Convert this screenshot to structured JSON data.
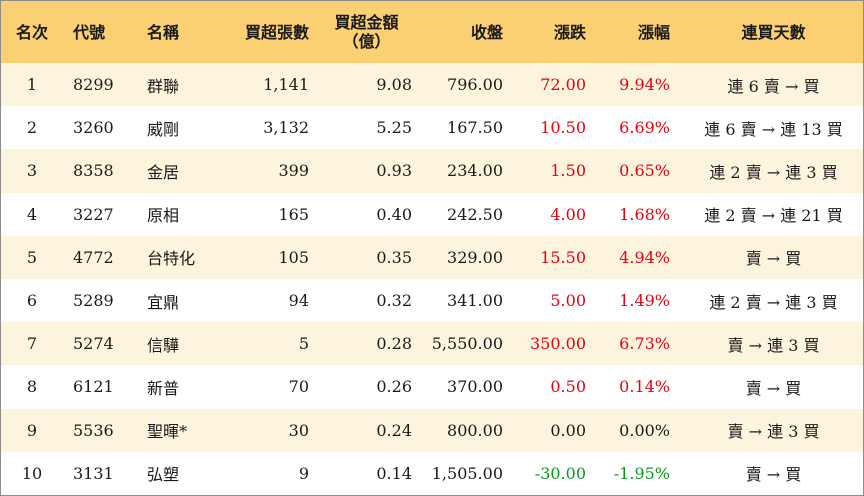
{
  "headers": {
    "rank": "名次",
    "code": "代號",
    "name": "名稱",
    "net_buy_lots": "買超張數",
    "net_buy_amount": "買超金額",
    "net_buy_amount_unit": "（億）",
    "close": "收盤",
    "change": "漲跌",
    "change_pct": "漲幅",
    "consecutive_days": "連買天數"
  },
  "rows": [
    {
      "rank": "1",
      "code": "8299",
      "name": "群聯",
      "lots": "1,141",
      "amount": "9.08",
      "close": "796.00",
      "change": "72.00",
      "pct": "9.94%",
      "days": "連 6 賣 → 買",
      "dir": "up"
    },
    {
      "rank": "2",
      "code": "3260",
      "name": "威剛",
      "lots": "3,132",
      "amount": "5.25",
      "close": "167.50",
      "change": "10.50",
      "pct": "6.69%",
      "days": "連 6 賣 → 連 13 買",
      "dir": "up"
    },
    {
      "rank": "3",
      "code": "8358",
      "name": "金居",
      "lots": "399",
      "amount": "0.93",
      "close": "234.00",
      "change": "1.50",
      "pct": "0.65%",
      "days": "連 2 賣 → 連 3 買",
      "dir": "up"
    },
    {
      "rank": "4",
      "code": "3227",
      "name": "原相",
      "lots": "165",
      "amount": "0.40",
      "close": "242.50",
      "change": "4.00",
      "pct": "1.68%",
      "days": "連 2 賣 → 連 21 買",
      "dir": "up"
    },
    {
      "rank": "5",
      "code": "4772",
      "name": "台特化",
      "lots": "105",
      "amount": "0.35",
      "close": "329.00",
      "change": "15.50",
      "pct": "4.94%",
      "days": "賣 → 買",
      "dir": "up"
    },
    {
      "rank": "6",
      "code": "5289",
      "name": "宜鼎",
      "lots": "94",
      "amount": "0.32",
      "close": "341.00",
      "change": "5.00",
      "pct": "1.49%",
      "days": "連 2 賣 → 連 3 買",
      "dir": "up"
    },
    {
      "rank": "7",
      "code": "5274",
      "name": "信驊",
      "lots": "5",
      "amount": "0.28",
      "close": "5,550.00",
      "change": "350.00",
      "pct": "6.73%",
      "days": "賣 → 連 3 買",
      "dir": "up"
    },
    {
      "rank": "8",
      "code": "6121",
      "name": "新普",
      "lots": "70",
      "amount": "0.26",
      "close": "370.00",
      "change": "0.50",
      "pct": "0.14%",
      "days": "賣 → 買",
      "dir": "up"
    },
    {
      "rank": "9",
      "code": "5536",
      "name": "聖暉*",
      "lots": "30",
      "amount": "0.24",
      "close": "800.00",
      "change": "0.00",
      "pct": "0.00%",
      "days": "賣 → 連 3 買",
      "dir": "flat"
    },
    {
      "rank": "10",
      "code": "3131",
      "name": "弘塑",
      "lots": "9",
      "amount": "0.14",
      "close": "1,505.00",
      "change": "-30.00",
      "pct": "-1.95%",
      "days": "賣 → 買",
      "dir": "down"
    }
  ],
  "colors": {
    "header_bg": "#fbd073",
    "odd_row_bg": "#fdf4de",
    "even_row_bg": "#ffffff",
    "up": "#e60012",
    "down": "#0a9a1e"
  }
}
